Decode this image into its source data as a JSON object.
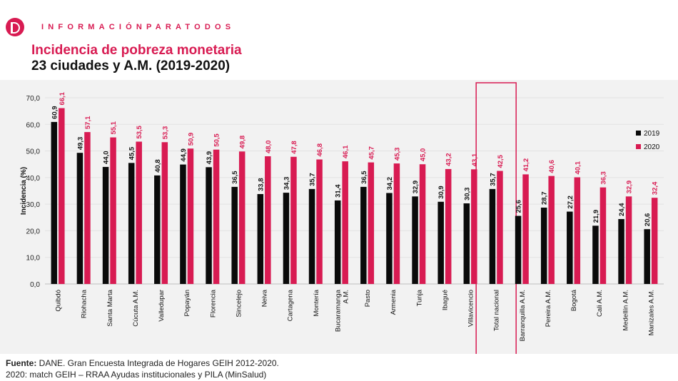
{
  "header": {
    "brand_text": "INFORMACIÓNPARATODOS",
    "title_line1": "Incidencia de pobreza monetaria",
    "title_line2": "23 ciudades y A.M. (2019-2020)"
  },
  "footer": {
    "source_label": "Fuente:",
    "source_text": " DANE. Gran Encuesta Integrada de Hogares GEIH 2012-2020.",
    "source_line2": "2020: match GEIH – RRAA Ayudas institucionales y PILA (MinSalud)"
  },
  "colors": {
    "series_2019": "#0a0a0a",
    "series_2020": "#d81b52",
    "highlight_box": "#d81b52",
    "background": "#f2f2f2"
  },
  "chart_data": {
    "type": "bar",
    "title": "",
    "xlabel": "",
    "ylabel": "Incidencia (%)",
    "ylim": [
      0,
      70
    ],
    "yticks": [
      "0,0",
      "10,0",
      "20,0",
      "30,0",
      "40,0",
      "50,0",
      "60,0",
      "70,0"
    ],
    "grid": true,
    "legend_position": "right",
    "highlighted_category": "Total nacional",
    "categories": [
      "Quibdó",
      "Riohacha",
      "Santa Marta",
      "Cúcuta A.M.",
      "Valledupar",
      "Popayán",
      "Florencia",
      "Sincelejo",
      "Neiva",
      "Cartagena",
      "Montería",
      "Bucaramanga A.M.",
      "Pasto",
      "Armenia",
      "Tunja",
      "Ibagué",
      "Villavicencio",
      "Total nacional",
      "Barranquilla A.M.",
      "Pereira A.M.",
      "Bogotá",
      "Cali A.M.",
      "Medellín A.M.",
      "Manizales A.M."
    ],
    "series": [
      {
        "name": "2019",
        "values": [
          60.9,
          49.3,
          44.0,
          45.5,
          40.8,
          44.9,
          43.9,
          36.5,
          33.8,
          34.3,
          35.7,
          31.4,
          36.5,
          34.2,
          32.9,
          30.9,
          30.3,
          35.7,
          25.6,
          28.7,
          27.2,
          21.9,
          24.4,
          20.6
        ],
        "labels": [
          "60,9",
          "49,3",
          "44,0",
          "45,5",
          "40,8",
          "44,9",
          "43,9",
          "36,5",
          "33,8",
          "34,3",
          "35,7",
          "31,4",
          "36,5",
          "34,2",
          "32,9",
          "30,9",
          "30,3",
          "35,7",
          "25,6",
          "28,7",
          "27,2",
          "21,9",
          "24,4",
          "20,6"
        ]
      },
      {
        "name": "2020",
        "values": [
          66.1,
          57.1,
          55.1,
          53.5,
          53.3,
          50.9,
          50.5,
          49.8,
          48.0,
          47.8,
          46.8,
          46.1,
          45.7,
          45.3,
          45.0,
          43.2,
          43.1,
          42.5,
          41.2,
          40.6,
          40.1,
          36.3,
          32.9,
          32.4
        ],
        "labels": [
          "66,1",
          "57,1",
          "55,1",
          "53,5",
          "53,3",
          "50,9",
          "50,5",
          "49,8",
          "48,0",
          "47,8",
          "46,8",
          "46,1",
          "45,7",
          "45,3",
          "45,0",
          "43,2",
          "43,1",
          "42,5",
          "41,2",
          "40,6",
          "40,1",
          "36,3",
          "32,9",
          "32,4"
        ]
      }
    ]
  }
}
